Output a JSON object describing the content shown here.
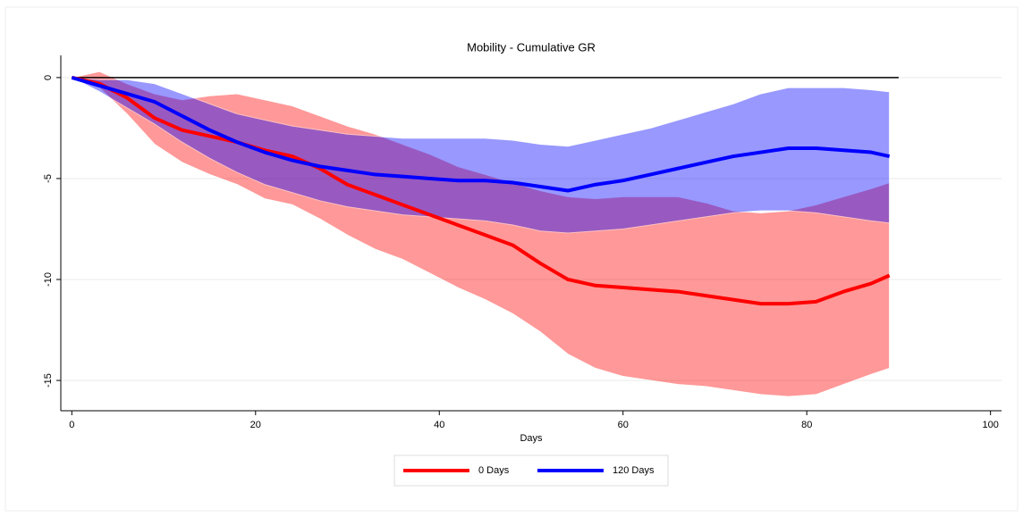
{
  "chart_data": {
    "type": "line_band",
    "title": "Mobility - Cumulative GR",
    "x_label": "Days",
    "x": [
      0,
      3,
      6,
      9,
      12,
      15,
      18,
      21,
      24,
      27,
      30,
      33,
      36,
      39,
      42,
      45,
      48,
      51,
      54,
      57,
      60,
      63,
      66,
      69,
      72,
      75,
      78,
      81,
      84,
      87,
      89
    ],
    "series": [
      {
        "name": "0 Days",
        "color": "#ff0000",
        "values": [
          0,
          -0.3,
          -1.0,
          -2.0,
          -2.6,
          -2.9,
          -3.2,
          -3.6,
          -3.9,
          -4.5,
          -5.3,
          -5.8,
          -6.3,
          -6.8,
          -7.3,
          -7.8,
          -8.3,
          -9.2,
          -10.0,
          -10.3,
          -10.4,
          -10.5,
          -10.6,
          -10.8,
          -11.0,
          -11.2,
          -11.2,
          -11.1,
          -10.6,
          -10.2,
          -9.8
        ],
        "lower": [
          0,
          -0.5,
          -1.8,
          -3.3,
          -4.2,
          -4.8,
          -5.3,
          -6.0,
          -6.3,
          -7.0,
          -7.8,
          -8.5,
          -9.0,
          -9.7,
          -10.4,
          -11.0,
          -11.7,
          -12.6,
          -13.7,
          -14.4,
          -14.8,
          -15.0,
          -15.2,
          -15.3,
          -15.5,
          -15.7,
          -15.8,
          -15.7,
          -15.2,
          -14.7,
          -14.4
        ],
        "upper": [
          0,
          0.3,
          -0.3,
          -0.8,
          -1.1,
          -0.9,
          -0.8,
          -1.1,
          -1.4,
          -1.9,
          -2.4,
          -2.8,
          -3.3,
          -3.8,
          -4.4,
          -4.8,
          -5.2,
          -5.6,
          -5.9,
          -6.0,
          -5.9,
          -5.9,
          -5.9,
          -6.2,
          -6.6,
          -6.7,
          -6.6,
          -6.3,
          -5.9,
          -5.5,
          -5.2
        ]
      },
      {
        "name": "120 Days",
        "color": "#0000ff",
        "values": [
          0,
          -0.4,
          -0.8,
          -1.2,
          -1.9,
          -2.6,
          -3.2,
          -3.7,
          -4.1,
          -4.4,
          -4.6,
          -4.8,
          -4.9,
          -5.0,
          -5.1,
          -5.1,
          -5.2,
          -5.4,
          -5.6,
          -5.3,
          -5.1,
          -4.8,
          -4.5,
          -4.2,
          -3.9,
          -3.7,
          -3.5,
          -3.5,
          -3.6,
          -3.7,
          -3.9
        ],
        "lower": [
          0,
          -0.7,
          -1.5,
          -2.3,
          -3.2,
          -4.0,
          -4.7,
          -5.3,
          -5.7,
          -6.1,
          -6.4,
          -6.6,
          -6.8,
          -6.9,
          -7.0,
          -7.1,
          -7.3,
          -7.6,
          -7.7,
          -7.6,
          -7.5,
          -7.3,
          -7.1,
          -6.9,
          -6.7,
          -6.6,
          -6.6,
          -6.7,
          -6.9,
          -7.1,
          -7.2
        ],
        "upper": [
          0,
          -0.1,
          -0.1,
          -0.3,
          -0.8,
          -1.3,
          -1.8,
          -2.1,
          -2.4,
          -2.6,
          -2.8,
          -2.9,
          -3.0,
          -3.0,
          -3.0,
          -3.0,
          -3.1,
          -3.3,
          -3.4,
          -3.1,
          -2.8,
          -2.5,
          -2.1,
          -1.7,
          -1.3,
          -0.8,
          -0.5,
          -0.5,
          -0.5,
          -0.6,
          -0.7
        ]
      }
    ],
    "reference_line": {
      "y": 0,
      "x_start": 0,
      "x_end": 90
    },
    "xlim": [
      -1.2,
      101.2
    ],
    "xticks": [
      0,
      20,
      40,
      60,
      80,
      100
    ],
    "ylim": [
      -16.5,
      1.1
    ],
    "yticks": [
      0,
      -5,
      -10,
      -15
    ],
    "grid": true,
    "legend": "bottom"
  }
}
